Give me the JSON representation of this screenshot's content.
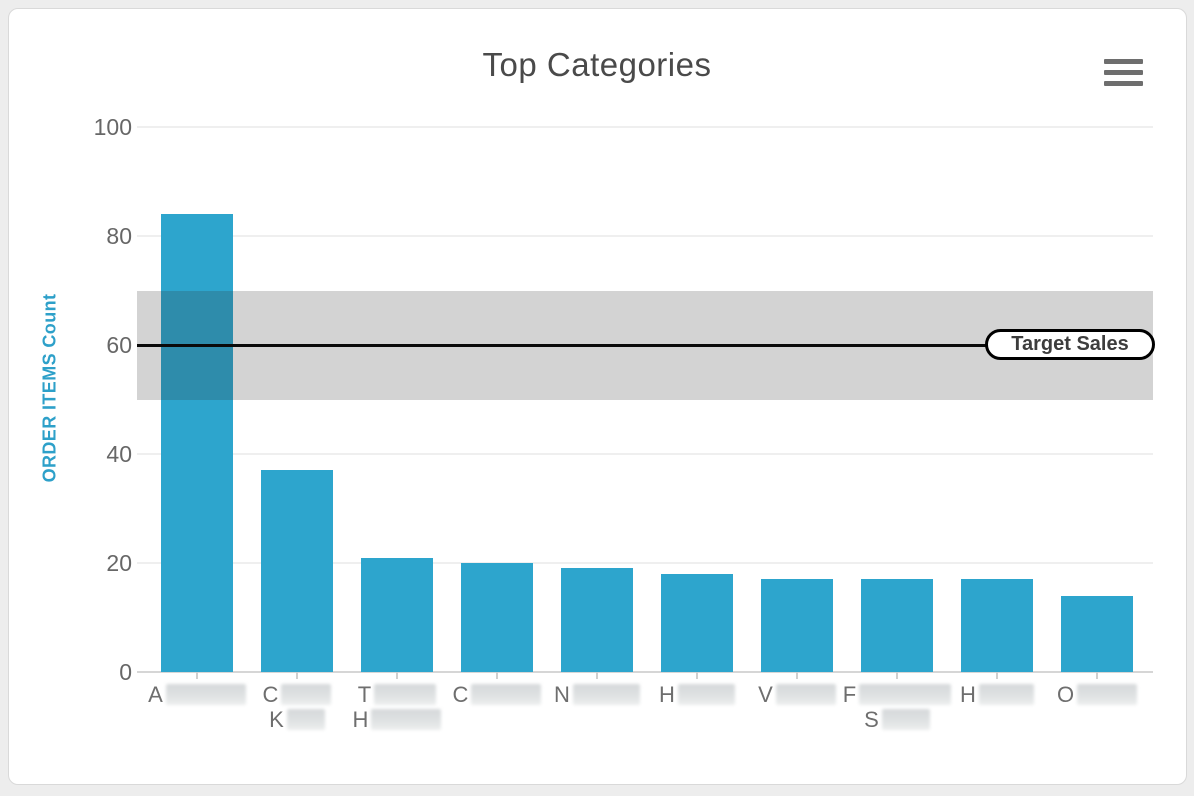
{
  "panel": {
    "title": "Top Categories",
    "menu_icon": "hamburger-menu-icon"
  },
  "chart_data": {
    "type": "bar",
    "title": "Top Categories",
    "xlabel": "",
    "ylabel": "ORDER ITEMS Count",
    "ylim": [
      0,
      100
    ],
    "yticks": [
      0,
      20,
      40,
      60,
      80,
      100
    ],
    "grid": true,
    "bar_color": "#2da5cd",
    "ylabel_color": "#2da0c9",
    "values": [
      84,
      37,
      21,
      20,
      19,
      18,
      17,
      17,
      17,
      14
    ],
    "categories": [
      {
        "lines": [
          {
            "letter": "A",
            "redacted_width": 80
          }
        ]
      },
      {
        "lines": [
          {
            "letter": "C",
            "redacted_width": 50
          },
          {
            "letter": "K",
            "redacted_width": 38
          }
        ]
      },
      {
        "lines": [
          {
            "letter": "T",
            "redacted_width": 62
          },
          {
            "letter": "H",
            "redacted_width": 70
          }
        ]
      },
      {
        "lines": [
          {
            "letter": "C",
            "redacted_width": 70
          }
        ]
      },
      {
        "lines": [
          {
            "letter": "N",
            "redacted_width": 67
          }
        ]
      },
      {
        "lines": [
          {
            "letter": "H",
            "redacted_width": 57
          }
        ]
      },
      {
        "lines": [
          {
            "letter": "V",
            "redacted_width": 60
          }
        ]
      },
      {
        "lines": [
          {
            "letter": "F",
            "redacted_width": 92
          },
          {
            "letter": "S",
            "redacted_width": 48
          }
        ]
      },
      {
        "lines": [
          {
            "letter": "H",
            "redacted_width": 55
          }
        ]
      },
      {
        "lines": [
          {
            "letter": "O",
            "redacted_width": 60
          }
        ]
      }
    ],
    "target_band": {
      "from": 50,
      "to": 70,
      "line_at": 60,
      "label": "Target Sales",
      "band_color": "rgba(50,50,50,0.215)",
      "line_color": "#0a0a0a"
    }
  }
}
